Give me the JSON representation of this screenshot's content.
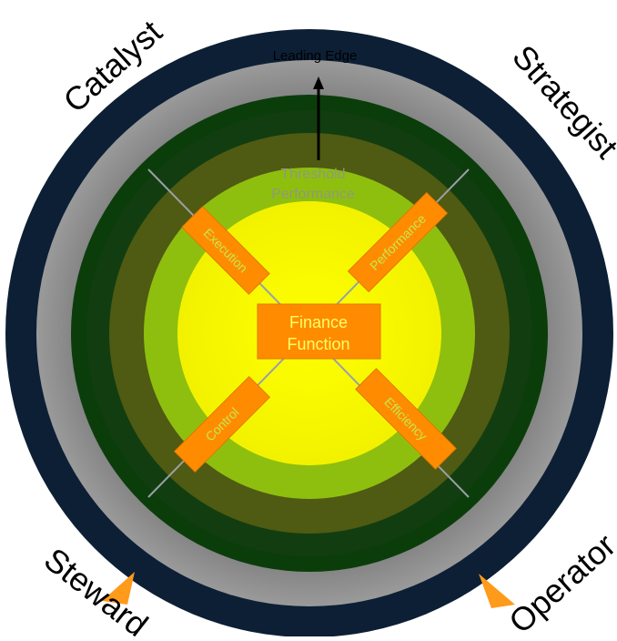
{
  "diagram": {
    "roles": {
      "top_left": "Catalyst",
      "top_right": "Strategist",
      "bottom_left": "Steward",
      "bottom_right": "Operator"
    },
    "top_label": "Leading Edge",
    "threshold_label": [
      "Threshold",
      "Performance"
    ],
    "center_label": [
      "Finance",
      "Function"
    ],
    "spokes": {
      "top_left": "Execution",
      "top_right": "Performance",
      "bottom_left": "Control",
      "bottom_right": "Efficiency"
    },
    "colors": {
      "outer_ring": "#0c1f35",
      "grey_ring": "#8a8a8a",
      "dark_green_ring": "#0b3d0b",
      "olive_ring": "#4f5a12",
      "lime_ring": "#8fbf0e",
      "center_yellow": "#ffff00",
      "orange": "#ff8c00"
    }
  }
}
